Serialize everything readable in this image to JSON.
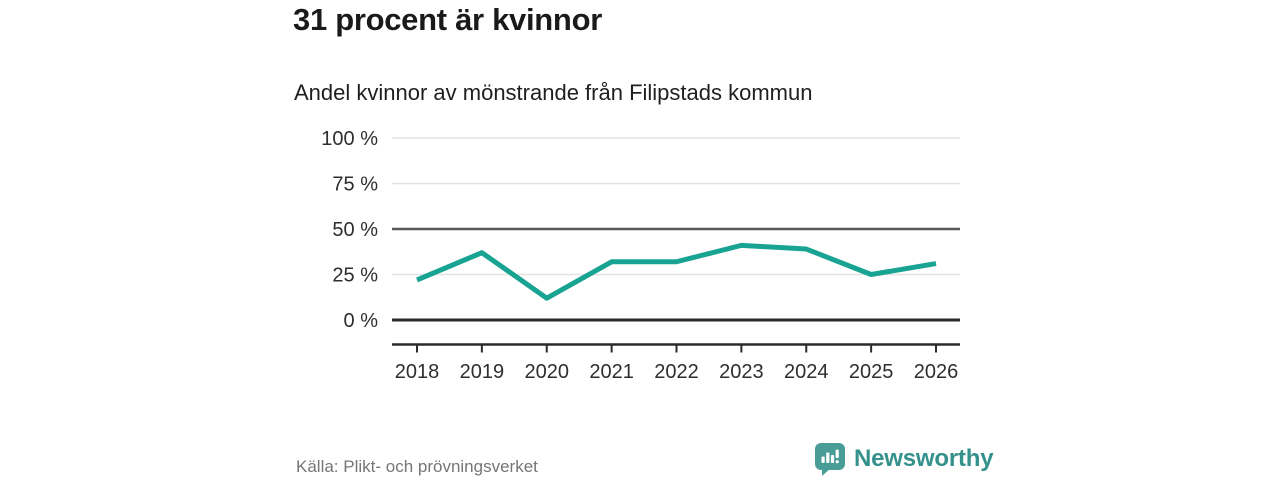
{
  "header": {
    "title": "31 procent är kvinnor",
    "subtitle": "Andel kvinnor av mönstrande från Filipstads kommun"
  },
  "chart_data": {
    "type": "line",
    "title": "Andel kvinnor av mönstrande från Filipstads kommun",
    "x": [
      "2018",
      "2019",
      "2020",
      "2021",
      "2022",
      "2023",
      "2024",
      "2025",
      "2026"
    ],
    "series": [
      {
        "name": "Andel kvinnor",
        "values": [
          22,
          37,
          12,
          32,
          32,
          41,
          39,
          25,
          31
        ]
      }
    ],
    "ylabel": "",
    "xlabel": "",
    "ylim": [
      0,
      100
    ],
    "yticks": [
      0,
      25,
      50,
      75,
      100
    ],
    "ytick_suffix": " %",
    "reference_line_y": 50,
    "grid": "horizontal",
    "legend": "none",
    "line_color": "#18a393"
  },
  "footer": {
    "source": "Källa: Plikt- och prövningsverket",
    "brand": "Newsworthy"
  },
  "icons": {
    "brand_logo": "bar-chart-speech-bubble-icon"
  },
  "colors": {
    "accent_teal": "#18a393",
    "brand_teal": "#4a9d97",
    "brand_text_teal": "#35918b",
    "title_text": "#1a1a1a",
    "axis_text": "#2e2e2e",
    "muted_text": "#767676",
    "grid_light": "#e3e3e3",
    "grid_reference": "#595959",
    "axis_dark": "#2b2b2b",
    "background": "#ffffff"
  }
}
